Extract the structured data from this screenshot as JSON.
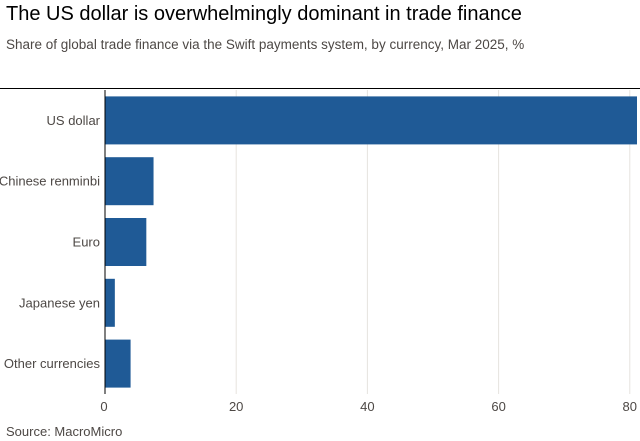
{
  "title": "The US dollar is overwhelmingly dominant in trade finance",
  "subtitle": "Share of global trade finance via the Swift payments system, by currency, Mar 2025, %",
  "source": "Source: MacroMicro",
  "colors": {
    "bar": "#1f5a96",
    "grid": "#e6e3df",
    "text": "#4d4845"
  },
  "chart_data": {
    "type": "bar",
    "orientation": "horizontal",
    "categories": [
      "US dollar",
      "Chinese renminbi",
      "Euro",
      "Japanese yen",
      "Other currencies"
    ],
    "values": [
      81.1,
      7.4,
      6.3,
      1.5,
      3.9
    ],
    "xlim": [
      0,
      81.1
    ],
    "xticks": [
      0,
      20,
      40,
      60,
      80
    ],
    "xlabel": "",
    "ylabel": "",
    "grid": true,
    "legend": "none"
  }
}
